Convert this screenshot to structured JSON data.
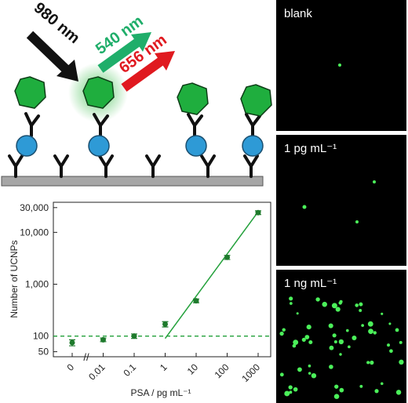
{
  "schematic": {
    "excitation": "980 nm",
    "emission_green": "540 nm",
    "emission_red": "656 nm"
  },
  "panels": [
    {
      "label": "blank"
    },
    {
      "label": "1 pg mL⁻¹"
    },
    {
      "label": "1 ng mL⁻¹"
    }
  ],
  "chart_data": {
    "type": "scatter",
    "x_label": "PSA / pg mL⁻¹",
    "y_label": "Number of UCNPs",
    "categories": [
      "0",
      "0.01",
      "0.1",
      "1",
      "10",
      "100",
      "1000"
    ],
    "series": [
      {
        "color": "#1e7a2c",
        "values": [
          75,
          85,
          100,
          170,
          480,
          3300,
          24000
        ],
        "errors": [
          10,
          7,
          10,
          20,
          40,
          300,
          2000
        ]
      }
    ],
    "fit_values": [
      null,
      null,
      null,
      90,
      null,
      null,
      25000
    ],
    "fit_color": "#22a03a",
    "reference_line": 100,
    "reference_color": "#22a03a",
    "y_log": true,
    "ylim": [
      40,
      38000
    ],
    "yticks": [
      50,
      100,
      {
        "value": 1000,
        "label": "1,000"
      },
      {
        "value": 10000,
        "label": "10,000"
      },
      {
        "value": 30000,
        "label": "30,000"
      }
    ]
  }
}
